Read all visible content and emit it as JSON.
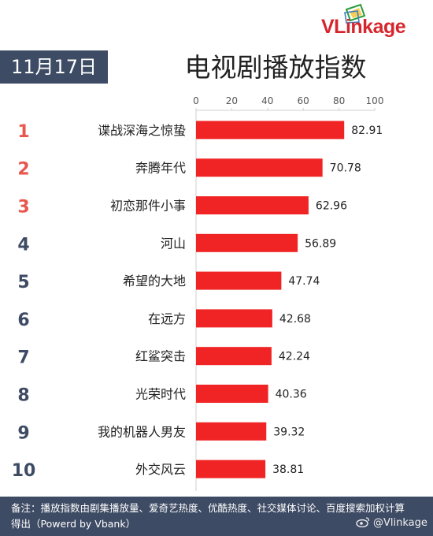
{
  "brand": {
    "name": "VLinkage"
  },
  "header": {
    "date": "11月17日",
    "title": "电视剧播放指数"
  },
  "footer": {
    "note": "备注：播放指数由剧集播放量、爱奇艺热度、优酷热度、社交媒体讨论、百度搜索加权计算得出（Powerd by Vbank）",
    "watermark": "@Vlinkage"
  },
  "colors": {
    "bar": "#f02424",
    "rank_top3": "#e8564d",
    "rank_rest": "#3e4b64",
    "badge_bg": "#3e4b64"
  },
  "chart_data": {
    "type": "bar",
    "orientation": "horizontal",
    "title": "电视剧播放指数",
    "xlim": [
      0,
      100
    ],
    "xticks": [
      0,
      20,
      40,
      60,
      80,
      100
    ],
    "x_axis_position": "top",
    "grid": false,
    "categories": [
      "谍战深海之惊蛰",
      "奔腾年代",
      "初恋那件小事",
      "河山",
      "希望的大地",
      "在远方",
      "红鲨突击",
      "光荣时代",
      "我的机器人男友",
      "外交风云"
    ],
    "ranks": [
      "1",
      "2",
      "3",
      "4",
      "5",
      "6",
      "7",
      "8",
      "9",
      "10"
    ],
    "values": [
      82.91,
      70.78,
      62.96,
      56.89,
      47.74,
      42.68,
      42.24,
      40.36,
      39.32,
      38.81
    ],
    "value_labels": [
      "82.91",
      "70.78",
      "62.96",
      "56.89",
      "47.74",
      "42.68",
      "42.24",
      "40.36",
      "39.32",
      "38.81"
    ]
  }
}
